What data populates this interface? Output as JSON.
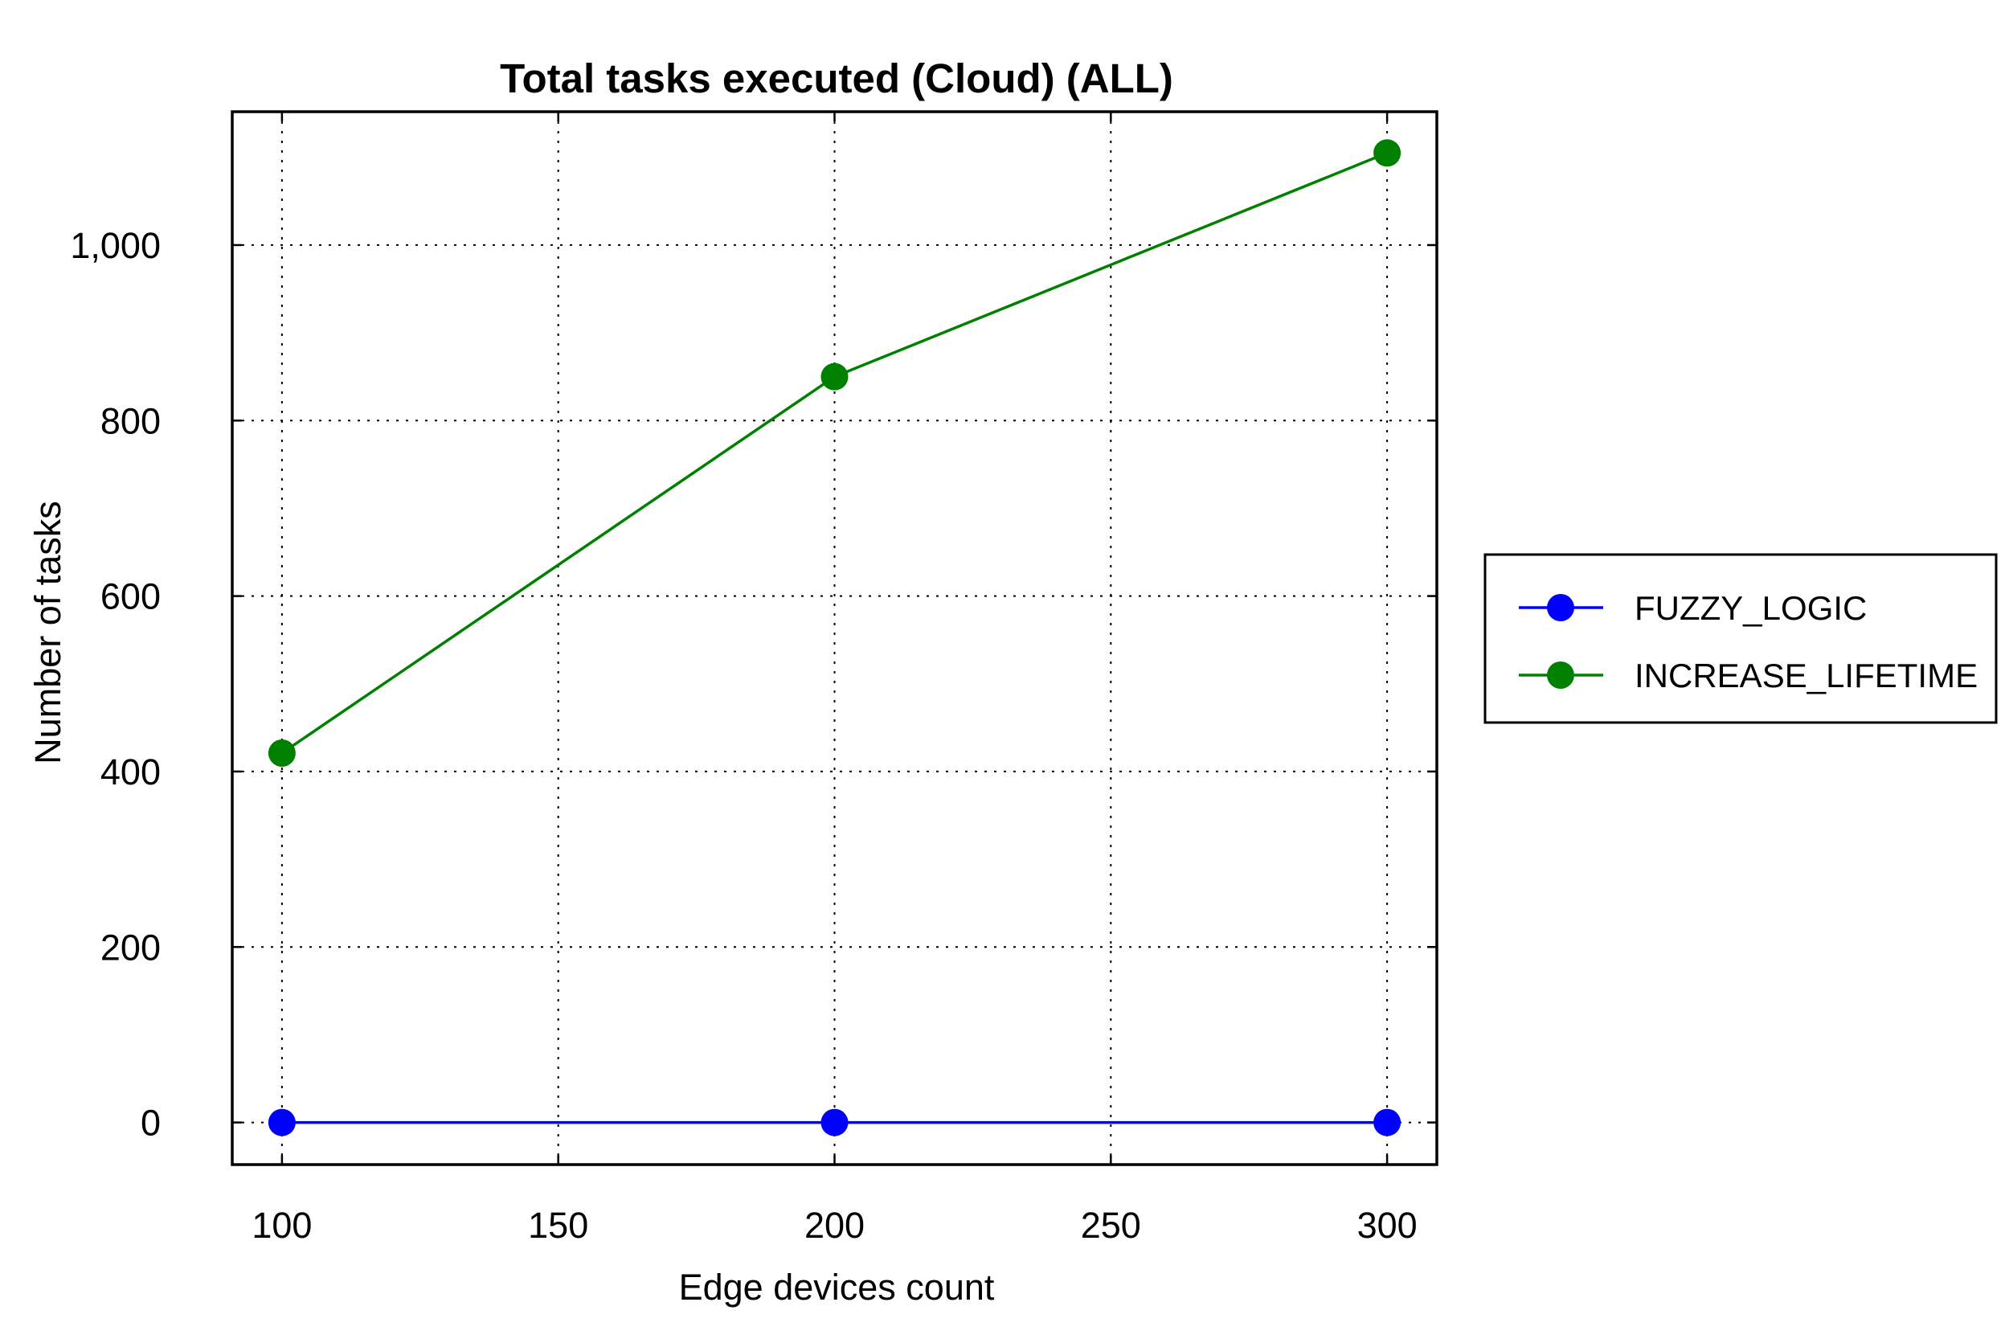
{
  "chart_data": {
    "type": "line",
    "title": "Total tasks executed (Cloud) (ALL)",
    "xlabel": "Edge devices count",
    "ylabel": "Number of tasks",
    "x": [
      100,
      200,
      300
    ],
    "xlim": [
      91,
      309
    ],
    "ylim": [
      -48,
      1152
    ],
    "xticks": [
      100,
      150,
      200,
      250,
      300
    ],
    "xtick_labels": [
      "100",
      "150",
      "200",
      "250",
      "300"
    ],
    "yticks": [
      0,
      200,
      400,
      600,
      800,
      1000
    ],
    "ytick_labels": [
      "0",
      "200",
      "400",
      "600",
      "800",
      "1,000"
    ],
    "grid": true,
    "legend_position": "right",
    "series": [
      {
        "name": "FUZZY_LOGIC",
        "values": [
          0,
          0,
          0
        ],
        "color": "#0000ff",
        "marker": "circle"
      },
      {
        "name": "INCREASE_LIFETIME",
        "values": [
          421,
          850,
          1105
        ],
        "color": "#008000",
        "marker": "circle"
      }
    ]
  }
}
